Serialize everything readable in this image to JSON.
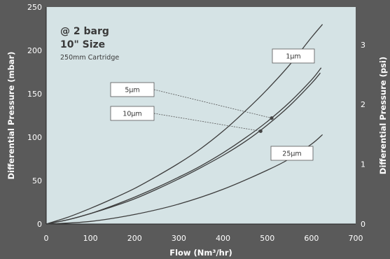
{
  "chart_data": {
    "type": "line",
    "title": "",
    "xlabel": "Flow (Nm³/hr)",
    "ylabel": "Differential Pressure (mbar)",
    "y2label": "Differential Pressure (psi)",
    "xlim": [
      0,
      700
    ],
    "ylim": [
      0,
      250
    ],
    "y2lim": [
      0,
      3.63
    ],
    "xticks": [
      0,
      100,
      200,
      300,
      400,
      500,
      600,
      700
    ],
    "yticks": [
      0,
      50,
      100,
      150,
      200,
      250
    ],
    "y2ticks": [
      0,
      1,
      2,
      3
    ],
    "grid": false,
    "notes": [
      "@ 2 barg",
      "10\" Size",
      "250mm Cartridge"
    ],
    "series": [
      {
        "name": "1µm",
        "x": [
          0,
          50,
          100,
          150,
          200,
          250,
          300,
          350,
          400,
          450,
          500,
          550,
          600,
          625
        ],
        "values": [
          0,
          8,
          18,
          29,
          41,
          55,
          70,
          87,
          107,
          130,
          155,
          183,
          215,
          230
        ]
      },
      {
        "name": "5µm",
        "x": [
          0,
          50,
          100,
          150,
          200,
          250,
          300,
          350,
          400,
          450,
          500,
          550,
          600,
          622
        ],
        "values": [
          0,
          5,
          12,
          21,
          31,
          42,
          54,
          67,
          82,
          99,
          118,
          140,
          166,
          180
        ]
      },
      {
        "name": "10µm",
        "x": [
          0,
          50,
          100,
          150,
          200,
          250,
          300,
          350,
          400,
          450,
          500,
          550,
          600,
          620
        ],
        "values": [
          0,
          5,
          12,
          20,
          29,
          40,
          52,
          65,
          79,
          95,
          114,
          136,
          162,
          174
        ]
      },
      {
        "name": "25µm",
        "x": [
          0,
          100,
          200,
          300,
          400,
          500,
          550,
          600,
          625
        ],
        "values": [
          0,
          3,
          11,
          23,
          40,
          62,
          75,
          92,
          103
        ]
      }
    ],
    "markers": [
      {
        "series": "5µm",
        "x": 510,
        "y": 122
      },
      {
        "series": "10µm",
        "x": 485,
        "y": 107
      }
    ],
    "legend": "callout-boxes"
  }
}
